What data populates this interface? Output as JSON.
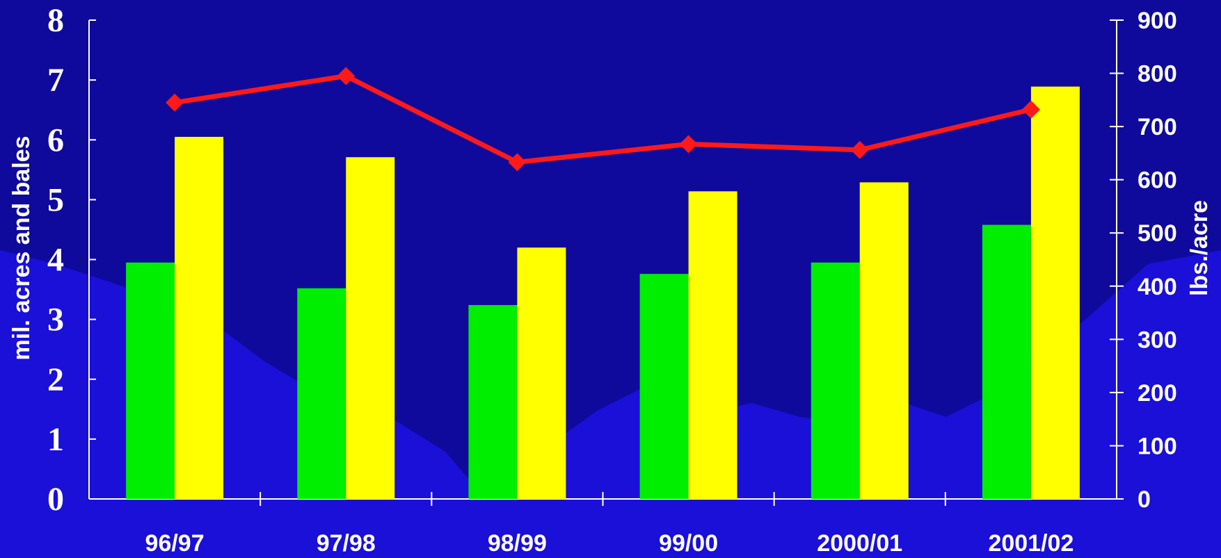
{
  "chart_data": {
    "type": "bar",
    "categories": [
      "96/97",
      "97/98",
      "98/99",
      "99/00",
      "2000/01",
      "2001/02"
    ],
    "series": [
      {
        "axis": "left",
        "type": "bar",
        "color": "#00ee00",
        "values": [
          3.95,
          3.52,
          3.24,
          3.76,
          3.95,
          4.58
        ]
      },
      {
        "axis": "left",
        "type": "bar",
        "color": "#ffff00",
        "values": [
          6.05,
          5.71,
          4.2,
          5.14,
          5.29,
          6.89
        ]
      },
      {
        "axis": "right",
        "type": "line",
        "marker": "diamond",
        "color": "#ff1a1a",
        "values": [
          745,
          795,
          633,
          667,
          656,
          732
        ]
      }
    ],
    "ylabel": "mil. acres and bales",
    "ylabel_right": "lbs./acre",
    "ylim": [
      0,
      8
    ],
    "ylim_right": [
      0,
      900
    ],
    "yticks": [
      "0",
      "1",
      "2",
      "3",
      "4",
      "5",
      "6",
      "7",
      "8"
    ],
    "yticks_right": [
      "0",
      "100",
      "200",
      "300",
      "400",
      "500",
      "600",
      "700",
      "800",
      "900"
    ],
    "grid": false,
    "legend": "none",
    "background_color": "#1a10d8"
  }
}
